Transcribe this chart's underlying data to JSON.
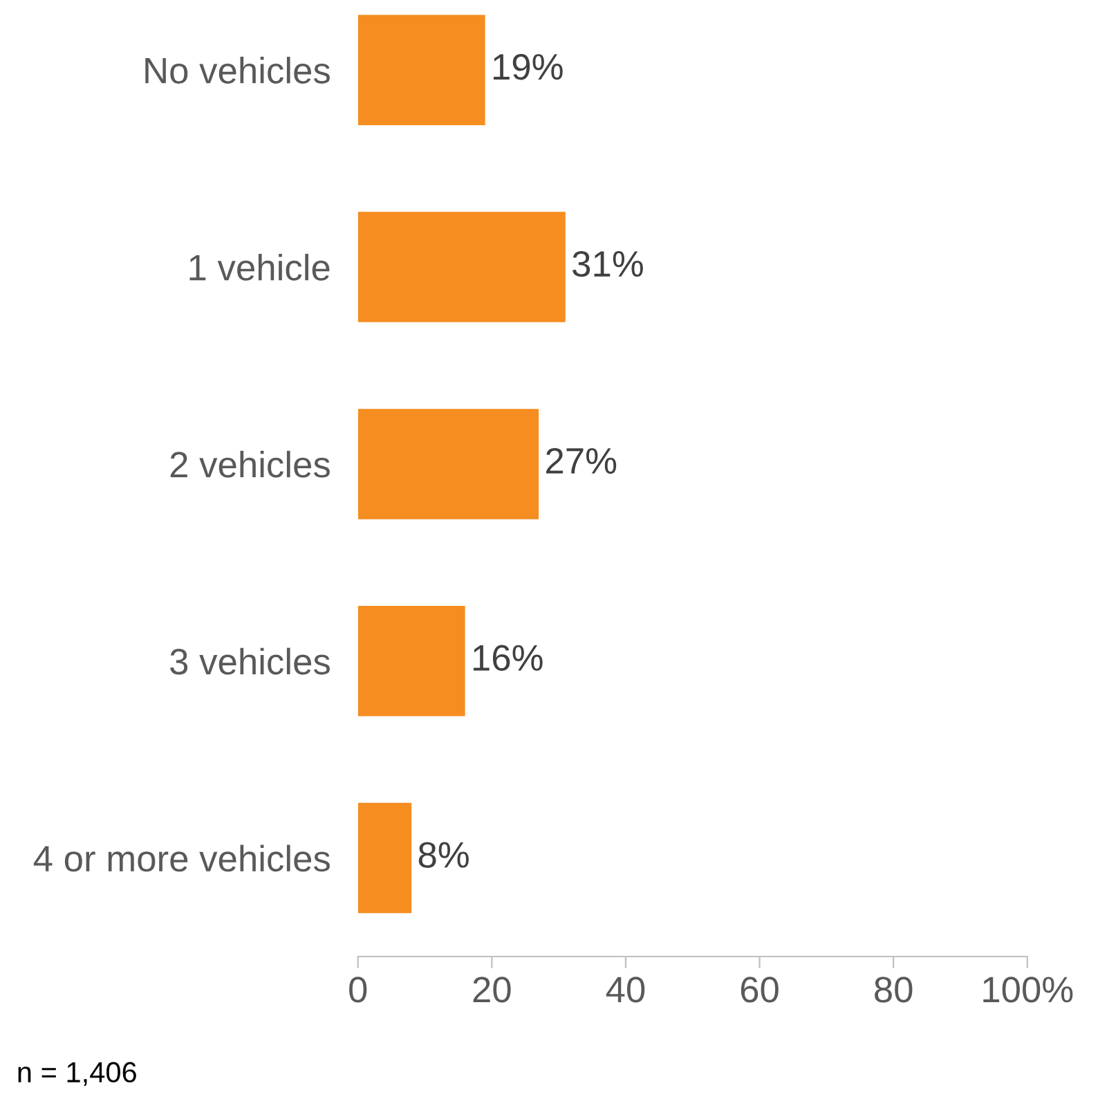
{
  "chart_data": {
    "type": "bar",
    "orientation": "horizontal",
    "categories": [
      "No vehicles",
      "1 vehicle",
      "2 vehicles",
      "3 vehicles",
      "4 or more vehicles"
    ],
    "values": [
      19,
      31,
      27,
      16,
      8
    ],
    "value_labels": [
      "19%",
      "31%",
      "27%",
      "16%",
      "8%"
    ],
    "color": "#f58d20",
    "xlim": [
      0,
      100
    ],
    "xticks": [
      0,
      20,
      40,
      60,
      80,
      {
        "value": 100,
        "label": "100%"
      }
    ],
    "grid": false,
    "annotations": [
      "n = 1,406"
    ]
  }
}
